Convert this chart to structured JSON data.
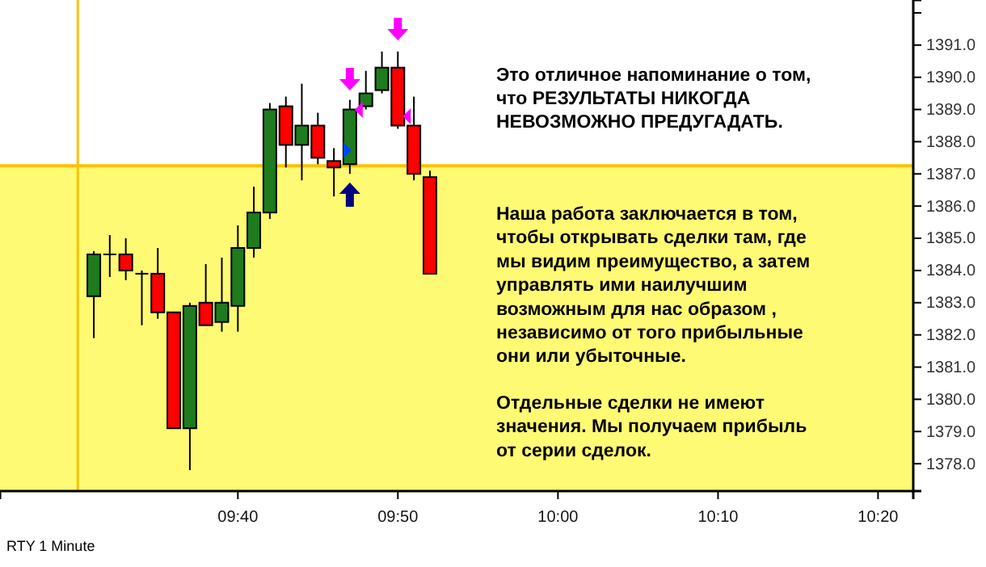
{
  "chart_data": {
    "type": "candlestick",
    "x": [
      9.5167,
      9.5333,
      9.55,
      9.5667,
      9.5833,
      9.6,
      9.6167,
      9.6333,
      9.65,
      9.6667,
      9.6833,
      9.7,
      9.7167,
      9.7333,
      9.75,
      9.7667,
      9.7833,
      9.8,
      9.8167,
      9.8333,
      9.85,
      9.8667
    ],
    "ohlc": [
      [
        1383.2,
        1384.6,
        1381.9,
        1384.5
      ],
      [
        1384.5,
        1385.1,
        1383.8,
        1384.5
      ],
      [
        1384.5,
        1385.0,
        1383.7,
        1384.0
      ],
      [
        1383.9,
        1384.0,
        1382.3,
        1383.9
      ],
      [
        1383.9,
        1384.7,
        1382.5,
        1382.7
      ],
      [
        1382.7,
        1382.7,
        1379.1,
        1379.1
      ],
      [
        1379.1,
        1383.0,
        1377.8,
        1382.9
      ],
      [
        1383.0,
        1384.2,
        1382.3,
        1382.3
      ],
      [
        1382.4,
        1384.4,
        1382.1,
        1383.0
      ],
      [
        1382.9,
        1385.4,
        1382.1,
        1384.7
      ],
      [
        1384.7,
        1386.6,
        1384.4,
        1385.8
      ],
      [
        1385.8,
        1389.2,
        1385.6,
        1389.0
      ],
      [
        1389.1,
        1389.4,
        1387.2,
        1387.9
      ],
      [
        1387.9,
        1389.8,
        1386.8,
        1388.5
      ],
      [
        1388.5,
        1388.9,
        1387.3,
        1387.5
      ],
      [
        1387.4,
        1387.8,
        1386.3,
        1387.2
      ],
      [
        1387.3,
        1389.3,
        1387.0,
        1389.0
      ],
      [
        1389.1,
        1390.2,
        1389.0,
        1389.5
      ],
      [
        1389.6,
        1390.8,
        1389.5,
        1390.3
      ],
      [
        1390.3,
        1390.8,
        1388.4,
        1388.5
      ],
      [
        1388.5,
        1389.4,
        1386.8,
        1387.0
      ],
      [
        1386.9,
        1387.1,
        1383.9,
        1383.9
      ]
    ],
    "colors": [
      "#1e7b1e",
      "#000000",
      "#ff0000",
      "#000000",
      "#ff0000",
      "#ff0000",
      "#1e7b1e",
      "#ff0000",
      "#1e7b1e",
      "#1e7b1e",
      "#1e7b1e",
      "#1e7b1e",
      "#ff0000",
      "#1e7b1e",
      "#ff0000",
      "#ff0000",
      "#1e7b1e",
      "#1e7b1e",
      "#1e7b1e",
      "#ff0000",
      "#ff0000",
      "#ff0000"
    ],
    "xlim": [
      9.419,
      10.37
    ],
    "xticks": [
      {
        "value": 9.6667,
        "label": "09:40"
      },
      {
        "value": 9.8333,
        "label": "09:50"
      },
      {
        "value": 10,
        "label": "10:00"
      },
      {
        "value": 10.1667,
        "label": "10:10"
      },
      {
        "value": 10.3333,
        "label": "10:20"
      }
    ],
    "ylim": [
      1377.15,
      1392.4
    ],
    "yticks": [
      {
        "value": 1378,
        "label": "1378.0"
      },
      {
        "value": 1379,
        "label": "1379.0"
      },
      {
        "value": 1380,
        "label": "1380.0"
      },
      {
        "value": 1381,
        "label": "1381.0"
      },
      {
        "value": 1382,
        "label": "1382.0"
      },
      {
        "value": 1383,
        "label": "1383.0"
      },
      {
        "value": 1384,
        "label": "1384.0"
      },
      {
        "value": 1385,
        "label": "1385.0"
      },
      {
        "value": 1386,
        "label": "1386.0"
      },
      {
        "value": 1387,
        "label": "1387.0"
      },
      {
        "value": 1388,
        "label": "1388.0"
      },
      {
        "value": 1389,
        "label": "1389.0"
      },
      {
        "value": 1390,
        "label": "1390.0"
      },
      {
        "value": 1391,
        "label": "1391.0"
      },
      {
        "value": 1392,
        "label": null
      }
    ],
    "bands": [
      {
        "axis": "y",
        "from": 1377.15,
        "to": 1387.25,
        "color": "#fffa73"
      }
    ],
    "ref_lines": [
      {
        "axis": "y",
        "value": 1387.25,
        "color": "#ffc000"
      },
      {
        "axis": "x",
        "value": 9.5,
        "color": "#ffc000"
      }
    ],
    "annotations": [
      "Это отличное напоминание о том,\nчто РЕЗУЛЬТАТЫ НИКОГДА\nНЕВОЗМОЖНО ПРЕДУГАДАТЬ.",
      "Наша работа заключается в том,\nчтобы открывать сделки там, где\nмы видим преимущество, а затем\nуправлять ими наилучшим\nвозможным для нас образом ,\nнезависимо от того прибыльные\nони или убыточные.",
      "Отдельные сделки не имеют\nзначения. Мы получаем прибыль\nот серии сделок.",
      "RTY 1 Minute"
    ]
  }
}
